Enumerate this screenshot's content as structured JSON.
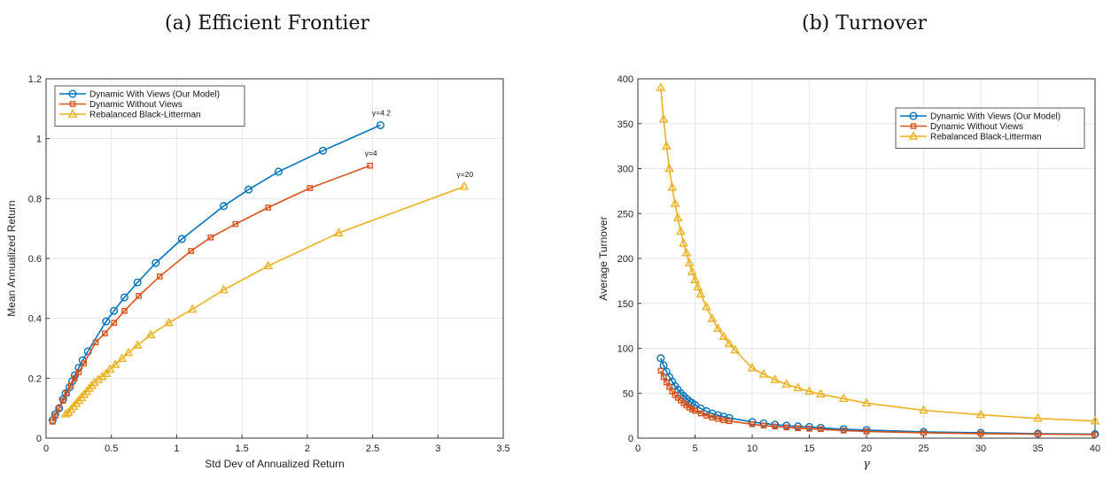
{
  "colors": {
    "blue": "#0072BD",
    "orange": "#D95319",
    "yellow": "#EDB120"
  },
  "chart_data": [
    {
      "type": "line",
      "title": "(a) Efficient Frontier",
      "xlabel": "Std Dev of Annualized Return",
      "ylabel": "Mean Annualized Return",
      "xlim": [
        0,
        3.5
      ],
      "ylim": [
        0,
        1.2
      ],
      "xticks": [
        "0",
        "0.5",
        "1",
        "1.5",
        "2",
        "2.5",
        "3",
        "3.5"
      ],
      "yticks": [
        "0",
        "0.2",
        "0.4",
        "0.6",
        "0.8",
        "1",
        "1.2"
      ],
      "grid": true,
      "legend_position": "top-left",
      "series": [
        {
          "name": "Dynamic With Views (Our Model)",
          "marker": "circle",
          "color": "#0072BD",
          "points": [
            [
              0.05,
              0.06
            ],
            [
              0.07,
              0.08
            ],
            [
              0.1,
              0.1
            ],
            [
              0.13,
              0.13
            ],
            [
              0.15,
              0.15
            ],
            [
              0.18,
              0.17
            ],
            [
              0.2,
              0.19
            ],
            [
              0.22,
              0.21
            ],
            [
              0.25,
              0.235
            ],
            [
              0.28,
              0.26
            ],
            [
              0.32,
              0.29
            ],
            [
              0.46,
              0.39
            ],
            [
              0.52,
              0.425
            ],
            [
              0.6,
              0.47
            ],
            [
              0.7,
              0.52
            ],
            [
              0.84,
              0.585
            ],
            [
              1.04,
              0.665
            ],
            [
              1.36,
              0.775
            ],
            [
              1.55,
              0.83
            ],
            [
              1.78,
              0.89
            ],
            [
              2.12,
              0.96
            ],
            [
              2.56,
              1.045
            ]
          ],
          "end_label": "γ=4.2"
        },
        {
          "name": "Dynamic Without Views",
          "marker": "square",
          "color": "#D95319",
          "points": [
            [
              0.05,
              0.055
            ],
            [
              0.07,
              0.075
            ],
            [
              0.1,
              0.1
            ],
            [
              0.13,
              0.125
            ],
            [
              0.16,
              0.15
            ],
            [
              0.19,
              0.175
            ],
            [
              0.22,
              0.2
            ],
            [
              0.25,
              0.22
            ],
            [
              0.29,
              0.25
            ],
            [
              0.38,
              0.32
            ],
            [
              0.45,
              0.35
            ],
            [
              0.52,
              0.385
            ],
            [
              0.6,
              0.425
            ],
            [
              0.71,
              0.475
            ],
            [
              0.87,
              0.54
            ],
            [
              1.11,
              0.625
            ],
            [
              1.26,
              0.67
            ],
            [
              1.45,
              0.715
            ],
            [
              1.7,
              0.77
            ],
            [
              2.02,
              0.835
            ],
            [
              2.48,
              0.91
            ]
          ],
          "end_label": "γ=4"
        },
        {
          "name": "Rebalanced Black-Litterman",
          "marker": "triangle",
          "color": "#EDB120",
          "points": [
            [
              0.15,
              0.08
            ],
            [
              0.17,
              0.085
            ],
            [
              0.19,
              0.095
            ],
            [
              0.21,
              0.105
            ],
            [
              0.23,
              0.115
            ],
            [
              0.25,
              0.125
            ],
            [
              0.27,
              0.135
            ],
            [
              0.29,
              0.145
            ],
            [
              0.31,
              0.155
            ],
            [
              0.33,
              0.165
            ],
            [
              0.35,
              0.175
            ],
            [
              0.37,
              0.185
            ],
            [
              0.4,
              0.195
            ],
            [
              0.43,
              0.205
            ],
            [
              0.46,
              0.215
            ],
            [
              0.49,
              0.23
            ],
            [
              0.53,
              0.245
            ],
            [
              0.58,
              0.265
            ],
            [
              0.63,
              0.285
            ],
            [
              0.7,
              0.31
            ],
            [
              0.8,
              0.345
            ],
            [
              0.94,
              0.385
            ],
            [
              1.12,
              0.43
            ],
            [
              1.36,
              0.495
            ],
            [
              1.7,
              0.575
            ],
            [
              2.24,
              0.685
            ],
            [
              3.2,
              0.84
            ]
          ],
          "end_label": "γ=20"
        }
      ]
    },
    {
      "type": "line",
      "title": "(b) Turnover",
      "xlabel": "γ",
      "ylabel": "Average Turnover",
      "xlim": [
        0,
        40
      ],
      "ylim": [
        0,
        400
      ],
      "xticks": [
        "0",
        "5",
        "10",
        "15",
        "20",
        "25",
        "30",
        "35",
        "40"
      ],
      "yticks": [
        "0",
        "50",
        "100",
        "150",
        "200",
        "250",
        "300",
        "350",
        "400"
      ],
      "grid": true,
      "legend_position": "top-right",
      "series": [
        {
          "name": "Dynamic With Views (Our Model)",
          "marker": "circle",
          "color": "#0072BD",
          "points": [
            [
              2,
              89
            ],
            [
              2.25,
              81
            ],
            [
              2.5,
              74
            ],
            [
              2.75,
              68
            ],
            [
              3,
              63
            ],
            [
              3.25,
              58
            ],
            [
              3.5,
              54
            ],
            [
              3.75,
              50
            ],
            [
              4,
              47
            ],
            [
              4.25,
              44
            ],
            [
              4.5,
              41
            ],
            [
              4.75,
              39
            ],
            [
              5,
              37
            ],
            [
              5.5,
              33
            ],
            [
              6,
              30
            ],
            [
              6.5,
              27.5
            ],
            [
              7,
              25.5
            ],
            [
              7.5,
              24
            ],
            [
              8,
              22.5
            ],
            [
              10,
              18
            ],
            [
              11,
              16.5
            ],
            [
              12,
              15
            ],
            [
              13,
              14
            ],
            [
              14,
              13
            ],
            [
              15,
              12.5
            ],
            [
              16,
              11.5
            ],
            [
              18,
              10
            ],
            [
              20,
              9
            ],
            [
              25,
              7
            ],
            [
              30,
              6
            ],
            [
              35,
              5
            ],
            [
              40,
              4.5
            ]
          ]
        },
        {
          "name": "Dynamic Without Views",
          "marker": "square",
          "color": "#D95319",
          "points": [
            [
              2,
              75
            ],
            [
              2.25,
              68
            ],
            [
              2.5,
              62
            ],
            [
              2.75,
              57
            ],
            [
              3,
              52
            ],
            [
              3.25,
              48
            ],
            [
              3.5,
              45
            ],
            [
              3.75,
              42
            ],
            [
              4,
              39
            ],
            [
              4.25,
              36.5
            ],
            [
              4.5,
              34
            ],
            [
              4.75,
              32
            ],
            [
              5,
              30.5
            ],
            [
              5.5,
              27.5
            ],
            [
              6,
              25
            ],
            [
              6.5,
              23
            ],
            [
              7,
              21.5
            ],
            [
              7.5,
              20
            ],
            [
              8,
              19
            ],
            [
              10,
              15.5
            ],
            [
              11,
              14
            ],
            [
              12,
              13
            ],
            [
              13,
              12
            ],
            [
              14,
              11
            ],
            [
              15,
              10.5
            ],
            [
              16,
              10
            ],
            [
              18,
              8.5
            ],
            [
              20,
              7.5
            ],
            [
              25,
              6
            ],
            [
              30,
              5
            ],
            [
              35,
              4.5
            ],
            [
              40,
              4
            ]
          ]
        },
        {
          "name": "Rebalanced Black-Litterman",
          "marker": "triangle",
          "color": "#EDB120",
          "points": [
            [
              2,
              390
            ],
            [
              2.25,
              355
            ],
            [
              2.5,
              325
            ],
            [
              2.75,
              300
            ],
            [
              3,
              279
            ],
            [
              3.25,
              261
            ],
            [
              3.5,
              245
            ],
            [
              3.75,
              230
            ],
            [
              4,
              217
            ],
            [
              4.25,
              206
            ],
            [
              4.5,
              195
            ],
            [
              4.75,
              185
            ],
            [
              5,
              176
            ],
            [
              5.25,
              168
            ],
            [
              5.5,
              160
            ],
            [
              6,
              146
            ],
            [
              6.5,
              133
            ],
            [
              7,
              122
            ],
            [
              7.5,
              113
            ],
            [
              8,
              105
            ],
            [
              8.5,
              98
            ],
            [
              10,
              78
            ],
            [
              11,
              71
            ],
            [
              12,
              65
            ],
            [
              13,
              60
            ],
            [
              14,
              56
            ],
            [
              15,
              52
            ],
            [
              16,
              49
            ],
            [
              18,
              44
            ],
            [
              20,
              39
            ],
            [
              25,
              31
            ],
            [
              30,
              26
            ],
            [
              35,
              22
            ],
            [
              40,
              19
            ]
          ]
        }
      ]
    }
  ]
}
